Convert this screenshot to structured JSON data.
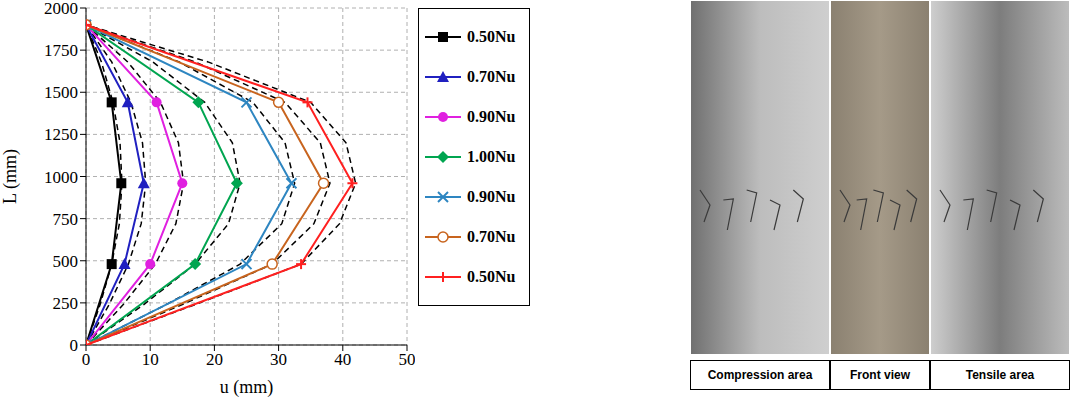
{
  "chart_data": {
    "type": "line",
    "x_label": "u (mm)",
    "y_label": "L (mm)",
    "xlim": [
      0,
      50
    ],
    "xticks": [
      0,
      10,
      20,
      30,
      40,
      50
    ],
    "ylim": [
      0,
      2000
    ],
    "yticks": [
      0,
      250,
      500,
      750,
      1000,
      1250,
      1500,
      1750,
      2000
    ],
    "grid": true,
    "legend": "right",
    "series": [
      {
        "name": "0.50Nu",
        "color": "#000000",
        "marker": "square",
        "line_style": "solid",
        "x": [
          0,
          4,
          5.5,
          4,
          0
        ],
        "y": [
          0,
          480,
          960,
          1440,
          1900
        ]
      },
      {
        "name": "0.70Nu",
        "color": "#2020c0",
        "marker": "triangle",
        "line_style": "solid",
        "x": [
          0,
          6,
          9,
          6.5,
          0
        ],
        "y": [
          0,
          480,
          960,
          1440,
          1900
        ]
      },
      {
        "name": "0.90Nu",
        "color": "#e020e0",
        "marker": "circle",
        "line_style": "solid",
        "x": [
          0,
          10,
          15,
          11,
          0
        ],
        "y": [
          0,
          480,
          960,
          1440,
          1900
        ]
      },
      {
        "name": "1.00Nu",
        "color": "#00a550",
        "marker": "diamond",
        "line_style": "solid",
        "x": [
          0,
          17,
          23.5,
          17.5,
          0
        ],
        "y": [
          0,
          480,
          960,
          1440,
          1900
        ]
      },
      {
        "name": "0.90Nu",
        "color": "#2e86c1",
        "marker": "x",
        "line_style": "solid",
        "x": [
          0,
          25,
          32,
          25,
          0
        ],
        "y": [
          0,
          480,
          960,
          1440,
          1900
        ]
      },
      {
        "name": "0.70Nu",
        "color": "#c8641e",
        "marker": "open_circle",
        "line_style": "solid",
        "x": [
          0,
          29,
          37,
          30,
          0
        ],
        "y": [
          0,
          480,
          960,
          1440,
          1900
        ]
      },
      {
        "name": "0.50Nu",
        "color": "#ff2020",
        "marker": "plus",
        "line_style": "solid",
        "x": [
          0,
          33.5,
          41.5,
          34.5,
          0
        ],
        "y": [
          0,
          480,
          960,
          1440,
          1900
        ]
      },
      {
        "color": "#000000",
        "marker": "none",
        "line_style": "dashed",
        "x": [
          0,
          2.2,
          4.0,
          5.2,
          5.6,
          5.3,
          4.2,
          2.4,
          0
        ],
        "y": [
          0,
          240,
          480,
          720,
          960,
          1200,
          1440,
          1680,
          1900
        ]
      },
      {
        "color": "#000000",
        "marker": "none",
        "line_style": "dashed",
        "x": [
          0,
          3.6,
          6.6,
          8.6,
          9.3,
          8.8,
          7.0,
          4.0,
          0
        ],
        "y": [
          0,
          240,
          480,
          720,
          960,
          1200,
          1440,
          1680,
          1900
        ]
      },
      {
        "color": "#000000",
        "marker": "none",
        "line_style": "dashed",
        "x": [
          0,
          5.8,
          10.8,
          14.0,
          15.2,
          14.4,
          11.6,
          6.5,
          0
        ],
        "y": [
          0,
          240,
          480,
          720,
          960,
          1200,
          1440,
          1680,
          1900
        ]
      },
      {
        "color": "#000000",
        "marker": "none",
        "line_style": "dashed",
        "x": [
          0,
          9.0,
          17.0,
          22.2,
          24.0,
          22.8,
          18.5,
          10.4,
          0
        ],
        "y": [
          0,
          240,
          480,
          720,
          960,
          1200,
          1440,
          1680,
          1900
        ]
      },
      {
        "color": "#000000",
        "marker": "none",
        "line_style": "dashed",
        "x": [
          0,
          12.5,
          24.0,
          30.5,
          32.5,
          31.0,
          26.0,
          14.5,
          0
        ],
        "y": [
          0,
          240,
          480,
          720,
          960,
          1200,
          1440,
          1680,
          1900
        ]
      },
      {
        "color": "#000000",
        "marker": "none",
        "line_style": "dashed",
        "x": [
          0,
          15.0,
          29.0,
          35.5,
          38.0,
          36.5,
          31.0,
          17.0,
          0
        ],
        "y": [
          0,
          240,
          480,
          720,
          960,
          1200,
          1440,
          1680,
          1900
        ]
      },
      {
        "color": "#000000",
        "marker": "none",
        "line_style": "dashed",
        "x": [
          0,
          17.0,
          33.5,
          39.5,
          42.0,
          40.5,
          35.0,
          19.0,
          0
        ],
        "y": [
          0,
          240,
          480,
          720,
          960,
          1200,
          1440,
          1680,
          1900
        ]
      }
    ]
  },
  "photo": {
    "panels": [
      "Compression area",
      "Front view",
      "Tensile area"
    ]
  }
}
